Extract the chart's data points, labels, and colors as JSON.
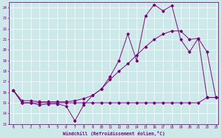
{
  "xlabel": "Windchill (Refroidissement éolien,°C)",
  "background_color": "#cde8e8",
  "line_color": "#7b007b",
  "grid_color": "#ffffff",
  "series1_x": [
    0,
    1,
    2,
    3,
    4,
    5,
    6,
    7,
    8,
    9,
    10,
    11,
    12,
    13,
    14,
    15,
    16,
    17,
    18,
    19,
    20,
    21,
    22,
    23
  ],
  "series1_y": [
    16.2,
    15.0,
    15.0,
    14.8,
    14.9,
    14.9,
    14.7,
    13.3,
    14.8,
    15.7,
    16.3,
    17.5,
    19.0,
    21.5,
    19.0,
    23.2,
    24.3,
    23.7,
    24.2,
    21.0,
    19.8,
    21.1,
    19.8,
    15.5
  ],
  "series2_x": [
    0,
    1,
    2,
    3,
    4,
    5,
    6,
    7,
    8,
    9,
    10,
    11,
    12,
    13,
    14,
    15,
    16,
    17,
    18,
    19,
    20,
    21,
    22,
    23
  ],
  "series2_y": [
    16.2,
    15.2,
    15.2,
    15.1,
    15.1,
    15.1,
    15.1,
    15.2,
    15.4,
    15.7,
    16.3,
    17.2,
    18.0,
    18.7,
    19.5,
    20.3,
    21.0,
    21.5,
    21.8,
    21.8,
    21.0,
    21.1,
    15.5,
    15.5
  ],
  "series3_x": [
    0,
    1,
    2,
    3,
    4,
    5,
    6,
    7,
    8,
    9,
    10,
    11,
    12,
    13,
    14,
    15,
    16,
    17,
    18,
    19,
    20,
    21,
    22,
    23
  ],
  "series3_y": [
    16.2,
    15.0,
    15.0,
    15.0,
    15.0,
    15.0,
    15.0,
    15.0,
    15.0,
    15.0,
    15.0,
    15.0,
    15.0,
    15.0,
    15.0,
    15.0,
    15.0,
    15.0,
    15.0,
    15.0,
    15.0,
    15.0,
    15.5,
    15.5
  ],
  "xlim": [
    -0.5,
    23.3
  ],
  "ylim": [
    13.0,
    24.5
  ],
  "yticks": [
    13,
    14,
    15,
    16,
    17,
    18,
    19,
    20,
    21,
    22,
    23,
    24
  ],
  "xticks": [
    0,
    1,
    2,
    3,
    4,
    5,
    6,
    7,
    8,
    9,
    10,
    11,
    12,
    13,
    14,
    15,
    16,
    17,
    18,
    19,
    20,
    21,
    22,
    23
  ]
}
